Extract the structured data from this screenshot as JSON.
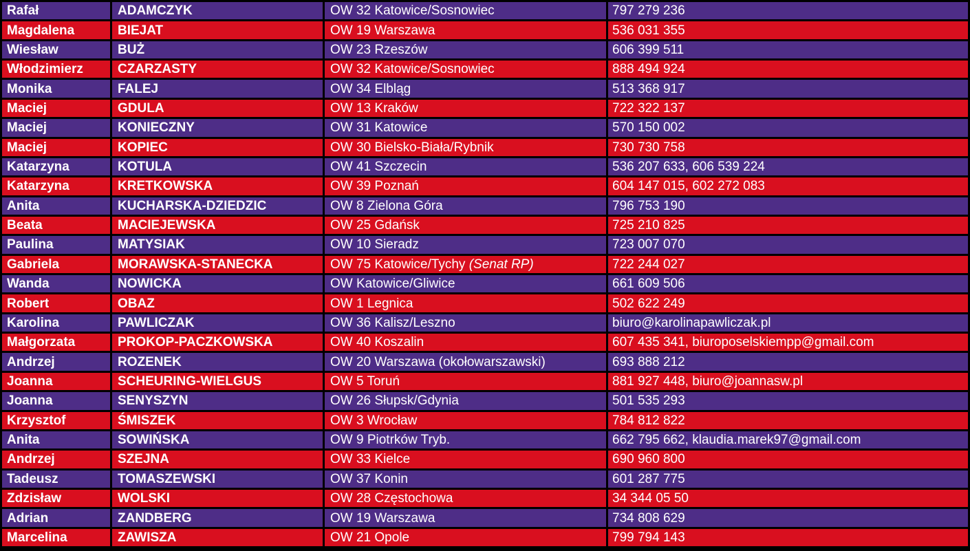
{
  "colors": {
    "row_purple": "#4E2D87",
    "row_red": "#D90F1F",
    "grid_black": "#000000",
    "text_white": "#FFFFFF"
  },
  "table": {
    "rows": [
      {
        "first": "Rafał",
        "last": "ADAMCZYK",
        "district": "OW 32 Katowice/Sosnowiec",
        "district_note": "",
        "contact": "797 279 236"
      },
      {
        "first": "Magdalena",
        "last": "BIEJAT",
        "district": "OW 19 Warszawa",
        "district_note": "",
        "contact": "536 031 355"
      },
      {
        "first": "Wiesław",
        "last": "BUŻ",
        "district": "OW 23 Rzeszów",
        "district_note": "",
        "contact": "606 399 511"
      },
      {
        "first": "Włodzimierz",
        "last": "CZARZASTY",
        "district": "OW 32 Katowice/Sosnowiec",
        "district_note": "",
        "contact": "888 494 924"
      },
      {
        "first": "Monika",
        "last": "FALEJ",
        "district": "OW 34 Elbląg",
        "district_note": "",
        "contact": "513 368 917"
      },
      {
        "first": "Maciej",
        "last": "GDULA",
        "district": "OW 13 Kraków",
        "district_note": "",
        "contact": "722 322 137"
      },
      {
        "first": "Maciej",
        "last": "KONIECZNY",
        "district": "OW 31 Katowice",
        "district_note": "",
        "contact": "570 150 002"
      },
      {
        "first": "Maciej",
        "last": "KOPIEC",
        "district": "OW 30 Bielsko-Biała/Rybnik",
        "district_note": "",
        "contact": "730 730 758"
      },
      {
        "first": "Katarzyna",
        "last": "KOTULA",
        "district": "OW 41 Szczecin",
        "district_note": "",
        "contact": "536 207 633, 606 539 224"
      },
      {
        "first": "Katarzyna",
        "last": "KRETKOWSKA",
        "district": "OW 39 Poznań",
        "district_note": "",
        "contact": "604 147 015, 602 272 083"
      },
      {
        "first": "Anita",
        "last": "KUCHARSKA-DZIEDZIC",
        "district": "OW 8 Zielona Góra",
        "district_note": "",
        "contact": "796 753 190"
      },
      {
        "first": "Beata",
        "last": "MACIEJEWSKA",
        "district": "OW 25 Gdańsk",
        "district_note": "",
        "contact": "725 210 825"
      },
      {
        "first": "Paulina",
        "last": "MATYSIAK",
        "district": "OW 10 Sieradz",
        "district_note": "",
        "contact": "723 007 070"
      },
      {
        "first": "Gabriela",
        "last": "MORAWSKA-STANECKA",
        "district": "OW 75 Katowice/Tychy ",
        "district_note": "(Senat RP)",
        "contact": "722 244 027"
      },
      {
        "first": "Wanda",
        "last": "NOWICKA",
        "district": "OW Katowice/Gliwice",
        "district_note": "",
        "contact": "661 609 506"
      },
      {
        "first": "Robert",
        "last": "OBAZ",
        "district": "OW 1 Legnica",
        "district_note": "",
        "contact": "502 622 249"
      },
      {
        "first": "Karolina",
        "last": "PAWLICZAK",
        "district": "OW 36 Kalisz/Leszno",
        "district_note": "",
        "contact": "biuro@karolinapawliczak.pl"
      },
      {
        "first": "Małgorzata",
        "last": "PROKOP-PACZKOWSKA",
        "district": "OW 40 Koszalin",
        "district_note": "",
        "contact": "607 435 341, biuroposelskiempp@gmail.com"
      },
      {
        "first": "Andrzej",
        "last": "ROZENEK",
        "district": "OW 20 Warszawa (okołowarszawski)",
        "district_note": "",
        "contact": "693 888 212"
      },
      {
        "first": "Joanna",
        "last": "SCHEURING-WIELGUS",
        "district": "OW 5 Toruń",
        "district_note": "",
        "contact": "881 927 448, biuro@joannasw.pl"
      },
      {
        "first": "Joanna",
        "last": "SENYSZYN",
        "district": "OW 26 Słupsk/Gdynia",
        "district_note": "",
        "contact": "501 535 293"
      },
      {
        "first": "Krzysztof",
        "last": "ŚMISZEK",
        "district": "OW 3 Wrocław",
        "district_note": "",
        "contact": "784 812 822"
      },
      {
        "first": "Anita",
        "last": "SOWIŃSKA",
        "district": "OW 9 Piotrków Tryb.",
        "district_note": "",
        "contact": "662 795 662, klaudia.marek97@gmail.com"
      },
      {
        "first": "Andrzej",
        "last": "SZEJNA",
        "district": "OW 33 Kielce",
        "district_note": "",
        "contact": "690 960 800"
      },
      {
        "first": "Tadeusz",
        "last": "TOMASZEWSKI",
        "district": "OW 37 Konin",
        "district_note": "",
        "contact": "601 287 775"
      },
      {
        "first": "Zdzisław",
        "last": "WOLSKI",
        "district": "OW 28 Częstochowa",
        "district_note": "",
        "contact": "34 344 05 50"
      },
      {
        "first": "Adrian",
        "last": "ZANDBERG",
        "district": "OW 19 Warszawa",
        "district_note": "",
        "contact": "734 808 629"
      },
      {
        "first": "Marcelina",
        "last": "ZAWISZA",
        "district": "OW 21 Opole",
        "district_note": "",
        "contact": "799 794 143"
      }
    ]
  }
}
